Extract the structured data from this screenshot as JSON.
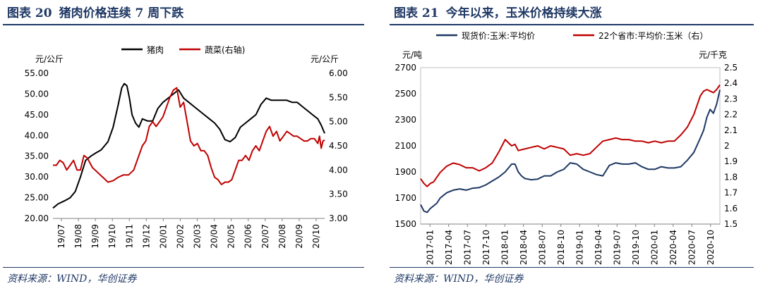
{
  "panel1": {
    "title_label": "图表 20",
    "title_text": "猪肉价格连续 7 周下跌",
    "source": "资料来源：WIND，华创证券"
  },
  "panel2": {
    "title_label": "图表 21",
    "title_text": "今年以来，玉米价格持续大涨",
    "source": "资料来源：WIND，华创证券"
  },
  "chart_data": [
    {
      "type": "line",
      "ylabel": "元/公斤",
      "y2label": "元/公斤",
      "ylim": [
        20,
        55
      ],
      "y2lim": [
        3.0,
        6.0
      ],
      "yticks": [
        "20.00",
        "25.00",
        "30.00",
        "35.00",
        "40.00",
        "45.00",
        "50.00",
        "55.00"
      ],
      "y2ticks": [
        "3.00",
        "3.50",
        "4.00",
        "4.50",
        "5.00",
        "5.50",
        "6.00"
      ],
      "xticks": [
        "19/07",
        "19/08",
        "19/09",
        "19/10",
        "19/11",
        "19/12",
        "20/01",
        "20/02",
        "20/03",
        "20/04",
        "20/05",
        "20/06",
        "20/07",
        "20/08",
        "20/09",
        "20/10"
      ],
      "xlim": [
        0,
        15.8
      ],
      "legend_position": "top",
      "series": [
        {
          "name": "猪肉",
          "axis": "left",
          "color": "#000000",
          "x": [
            0,
            0.3,
            0.7,
            1.0,
            1.3,
            1.6,
            1.9,
            2.2,
            2.5,
            2.8,
            3.2,
            3.5,
            3.8,
            4.0,
            4.15,
            4.3,
            4.45,
            4.6,
            4.8,
            5.0,
            5.2,
            5.5,
            5.8,
            6.1,
            6.4,
            6.7,
            7.0,
            7.3,
            7.6,
            7.9,
            8.2,
            8.5,
            8.8,
            9.1,
            9.4,
            9.7,
            10.0,
            10.3,
            10.6,
            10.9,
            11.2,
            11.5,
            11.8,
            12.1,
            12.4,
            12.7,
            13.0,
            13.3,
            13.6,
            13.9,
            14.2,
            14.5,
            14.8,
            15.1,
            15.4,
            15.6,
            15.8
          ],
          "y": [
            22.5,
            23.5,
            24.3,
            25.0,
            26.5,
            30.0,
            34.0,
            35.0,
            35.8,
            36.5,
            38.5,
            42.0,
            47.5,
            51.5,
            52.5,
            52.0,
            49.0,
            45.0,
            43.0,
            42.0,
            44.0,
            43.5,
            43.5,
            46.5,
            48.0,
            49.0,
            50.0,
            51.0,
            49.0,
            48.0,
            47.0,
            46.0,
            45.0,
            44.0,
            43.0,
            41.5,
            39.0,
            38.5,
            39.5,
            42.0,
            43.0,
            44.0,
            45.0,
            47.5,
            49.0,
            48.5,
            48.5,
            48.5,
            48.5,
            48.0,
            48.0,
            47.0,
            46.0,
            45.0,
            44.0,
            42.5,
            40.5
          ]
        },
        {
          "name": "蔬菜(右轴)",
          "axis": "right",
          "color": "#c00000",
          "x": [
            0,
            0.2,
            0.4,
            0.6,
            0.8,
            1.0,
            1.2,
            1.4,
            1.6,
            1.8,
            2.0,
            2.3,
            2.6,
            2.9,
            3.2,
            3.5,
            3.8,
            4.1,
            4.4,
            4.7,
            5.0,
            5.2,
            5.4,
            5.6,
            5.8,
            6.0,
            6.2,
            6.4,
            6.6,
            6.8,
            7.0,
            7.2,
            7.4,
            7.6,
            7.8,
            8.0,
            8.2,
            8.4,
            8.6,
            8.8,
            9.0,
            9.2,
            9.4,
            9.6,
            9.8,
            10.0,
            10.2,
            10.4,
            10.6,
            10.8,
            11.0,
            11.2,
            11.4,
            11.6,
            11.8,
            12.0,
            12.2,
            12.4,
            12.6,
            12.8,
            13.0,
            13.2,
            13.4,
            13.6,
            13.8,
            14.0,
            14.2,
            14.4,
            14.6,
            14.8,
            15.0,
            15.2,
            15.4,
            15.5,
            15.6,
            15.7,
            15.8
          ],
          "y": [
            4.1,
            4.1,
            4.2,
            4.15,
            4.0,
            4.1,
            4.2,
            4.0,
            4.0,
            4.3,
            4.25,
            4.05,
            3.95,
            3.85,
            3.75,
            3.78,
            3.85,
            3.9,
            3.9,
            4.0,
            4.3,
            4.5,
            4.6,
            4.9,
            5.0,
            4.9,
            5.0,
            5.1,
            5.3,
            5.5,
            5.65,
            5.7,
            5.3,
            5.4,
            5.0,
            4.6,
            4.5,
            4.55,
            4.4,
            4.4,
            4.3,
            4.05,
            3.85,
            3.8,
            3.7,
            3.75,
            3.75,
            3.8,
            4.0,
            4.2,
            4.2,
            4.3,
            4.2,
            4.4,
            4.5,
            4.4,
            4.6,
            4.8,
            4.9,
            4.7,
            4.8,
            4.6,
            4.7,
            4.8,
            4.75,
            4.7,
            4.7,
            4.65,
            4.6,
            4.6,
            4.65,
            4.65,
            4.55,
            4.7,
            4.45,
            4.6,
            4.62
          ]
        }
      ]
    },
    {
      "type": "line",
      "ylabel": "元/吨",
      "y2label": "元/千克",
      "ylim": [
        1500,
        2700
      ],
      "y2lim": [
        1.5,
        2.5
      ],
      "yticks": [
        "1500",
        "1700",
        "1900",
        "2100",
        "2300",
        "2500",
        "2700"
      ],
      "y2ticks": [
        "1.5",
        "1.6",
        "1.7",
        "1.8",
        "1.9",
        "2",
        "2.1",
        "2.2",
        "2.3",
        "2.4",
        "2.5"
      ],
      "xticks": [
        "2017-01",
        "2017-04",
        "2017-07",
        "2017-10",
        "2018-01",
        "2018-04",
        "2018-07",
        "2018-10",
        "2019-01",
        "2019-04",
        "2019-07",
        "2019-10",
        "2020-01",
        "2020-04",
        "2020-07",
        "2020-10"
      ],
      "xlim": [
        0,
        46
      ],
      "legend_position": "top",
      "series": [
        {
          "name": "现货价:玉米:平均价",
          "axis": "left",
          "color": "#1f3864",
          "x": [
            0,
            0.5,
            1,
            1.5,
            2,
            2.5,
            3,
            3.5,
            4,
            5,
            6,
            7,
            8,
            9,
            10,
            11,
            12,
            13,
            14,
            14.5,
            15,
            15.5,
            16,
            17,
            18,
            19,
            20,
            21,
            22,
            23,
            24,
            25,
            26,
            27,
            28,
            29,
            30,
            31,
            32,
            33,
            34,
            35,
            36,
            37,
            38,
            39,
            40,
            41,
            42,
            43,
            43.5,
            44,
            44.5,
            45,
            45.5,
            46
          ],
          "y": [
            1650,
            1600,
            1590,
            1620,
            1640,
            1660,
            1700,
            1720,
            1740,
            1760,
            1770,
            1760,
            1775,
            1780,
            1800,
            1830,
            1860,
            1900,
            1960,
            1960,
            1900,
            1870,
            1850,
            1840,
            1845,
            1870,
            1870,
            1900,
            1920,
            1970,
            1960,
            1920,
            1900,
            1880,
            1870,
            1950,
            1970,
            1960,
            1960,
            1970,
            1940,
            1920,
            1920,
            1940,
            1930,
            1930,
            1940,
            1990,
            2050,
            2160,
            2220,
            2320,
            2380,
            2350,
            2420,
            2530
          ]
        },
        {
          "name": "22个省市:平均价:玉米（右）",
          "axis": "right",
          "color": "#c00000",
          "x": [
            0,
            0.5,
            1,
            1.5,
            2,
            2.5,
            3,
            3.5,
            4,
            5,
            6,
            7,
            8,
            9,
            10,
            11,
            12,
            12.5,
            13,
            13.5,
            14,
            14.5,
            15,
            16,
            17,
            18,
            19,
            20,
            21,
            22,
            23,
            24,
            25,
            26,
            27,
            28,
            29,
            30,
            31,
            32,
            33,
            34,
            35,
            36,
            37,
            38,
            39,
            40,
            41,
            42,
            42.5,
            43,
            43.5,
            44,
            44.5,
            45,
            45.5,
            46
          ],
          "y": [
            1.79,
            1.76,
            1.74,
            1.76,
            1.77,
            1.8,
            1.83,
            1.85,
            1.87,
            1.89,
            1.88,
            1.86,
            1.86,
            1.84,
            1.86,
            1.89,
            1.96,
            2.0,
            2.04,
            2.02,
            2.0,
            2.01,
            1.97,
            1.98,
            1.99,
            2.0,
            1.98,
            2.0,
            1.99,
            1.98,
            1.94,
            1.95,
            1.94,
            1.95,
            1.99,
            2.03,
            2.04,
            2.05,
            2.04,
            2.04,
            2.03,
            2.03,
            2.02,
            2.03,
            2.02,
            2.03,
            2.03,
            2.07,
            2.12,
            2.2,
            2.26,
            2.32,
            2.35,
            2.36,
            2.35,
            2.34,
            2.36,
            2.39
          ]
        }
      ]
    }
  ]
}
